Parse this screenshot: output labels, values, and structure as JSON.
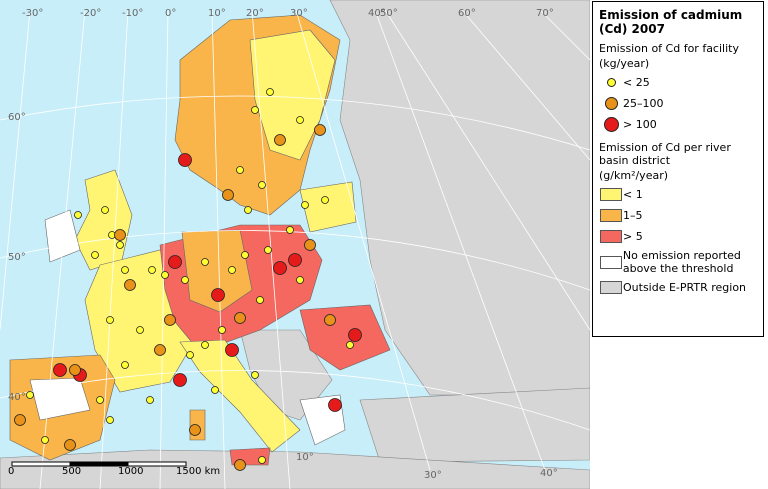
{
  "legend": {
    "title": "Emission of cadmium (Cd) 2007",
    "facility": {
      "heading": "Emission of Cd for facility",
      "unit": "(kg/year)",
      "items": [
        "< 25",
        "25–100",
        "> 100"
      ]
    },
    "basin": {
      "heading": "Emission of Cd per river basin district",
      "unit": "(g/km²/year)",
      "items": [
        "< 1",
        "1–5",
        "> 5",
        "No emission reported above the threshold",
        "Outside E-PRTR region"
      ]
    }
  },
  "map": {
    "graticule_top": [
      "-30°",
      "-20°",
      "-10°",
      "0°",
      "10°",
      "20°",
      "30°",
      "40°",
      "50°",
      "60°",
      "70°"
    ],
    "graticule_left": [
      "60°",
      "50°",
      "40°"
    ],
    "graticule_bottom": [
      "10°",
      "30°",
      "40°"
    ],
    "scale": [
      "0",
      "500",
      "1000",
      "1500 km"
    ]
  }
}
